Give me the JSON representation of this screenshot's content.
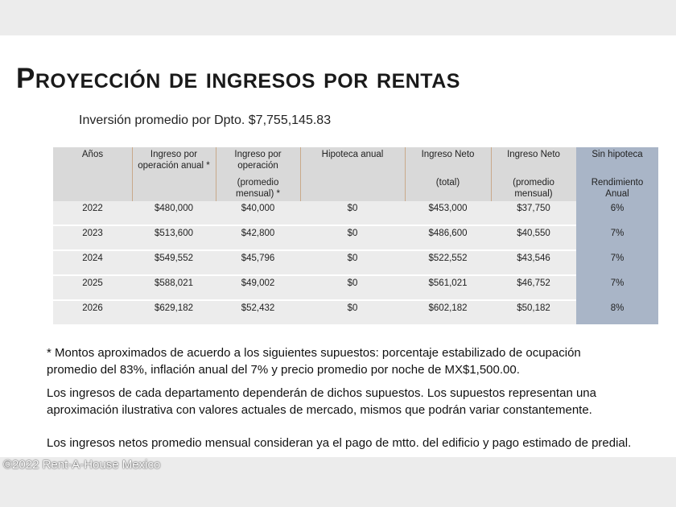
{
  "title": "Proyección de ingresos por rentas",
  "subtitle": "Inversión promedio por Dpto. $7,755,145.83",
  "table": {
    "header": [
      {
        "lines": [
          "Años"
        ]
      },
      {
        "lines": [
          "Ingreso por",
          "operación anual *"
        ]
      },
      {
        "lines": [
          "Ingreso por",
          "operación"
        ],
        "sub": [
          "(promedio",
          "mensual) *"
        ]
      },
      {
        "lines": [
          "Hipoteca anual"
        ]
      },
      {
        "lines": [
          "Ingreso Neto"
        ],
        "sub": [
          "(total)"
        ]
      },
      {
        "lines": [
          "Ingreso Neto"
        ],
        "sub": [
          "(promedio",
          "mensual)"
        ]
      },
      {
        "lines": [
          "Sin hipoteca"
        ],
        "sub": [
          "Rendimiento",
          "Anual"
        ]
      }
    ],
    "rows": [
      [
        "2022",
        "$480,000",
        "$40,000",
        "$0",
        "$453,000",
        "$37,750",
        "6%"
      ],
      [
        "2023",
        "$513,600",
        "$42,800",
        "$0",
        "$486,600",
        "$40,550",
        "7%"
      ],
      [
        "2024",
        "$549,552",
        "$45,796",
        "$0",
        "$522,552",
        "$43,546",
        "7%"
      ],
      [
        "2025",
        "$588,021",
        "$49,002",
        "$0",
        "$561,021",
        "$46,752",
        "7%"
      ],
      [
        "2026",
        "$629,182",
        "$52,432",
        "$0",
        "$602,182",
        "$50,182",
        "8%"
      ]
    ]
  },
  "notes": [
    [
      "* Montos aproximados de acuerdo a los siguientes supuestos: porcentaje estabilizado de ocupación",
      "promedio del 83%, inflación anual del 7% y precio promedio por noche de MX$1,500.00."
    ],
    [
      "Los ingresos de cada departamento dependerán de dichos supuestos. Los supuestos representan una",
      "aproximación ilustrativa con valores actuales de mercado, mismos que podrán variar constantemente."
    ],
    [
      "Los ingresos netos promedio mensual consideran ya el pago de mtto. del edificio y pago estimado de predial."
    ]
  ],
  "watermark": "©2022 Rent-A-House Mexico"
}
